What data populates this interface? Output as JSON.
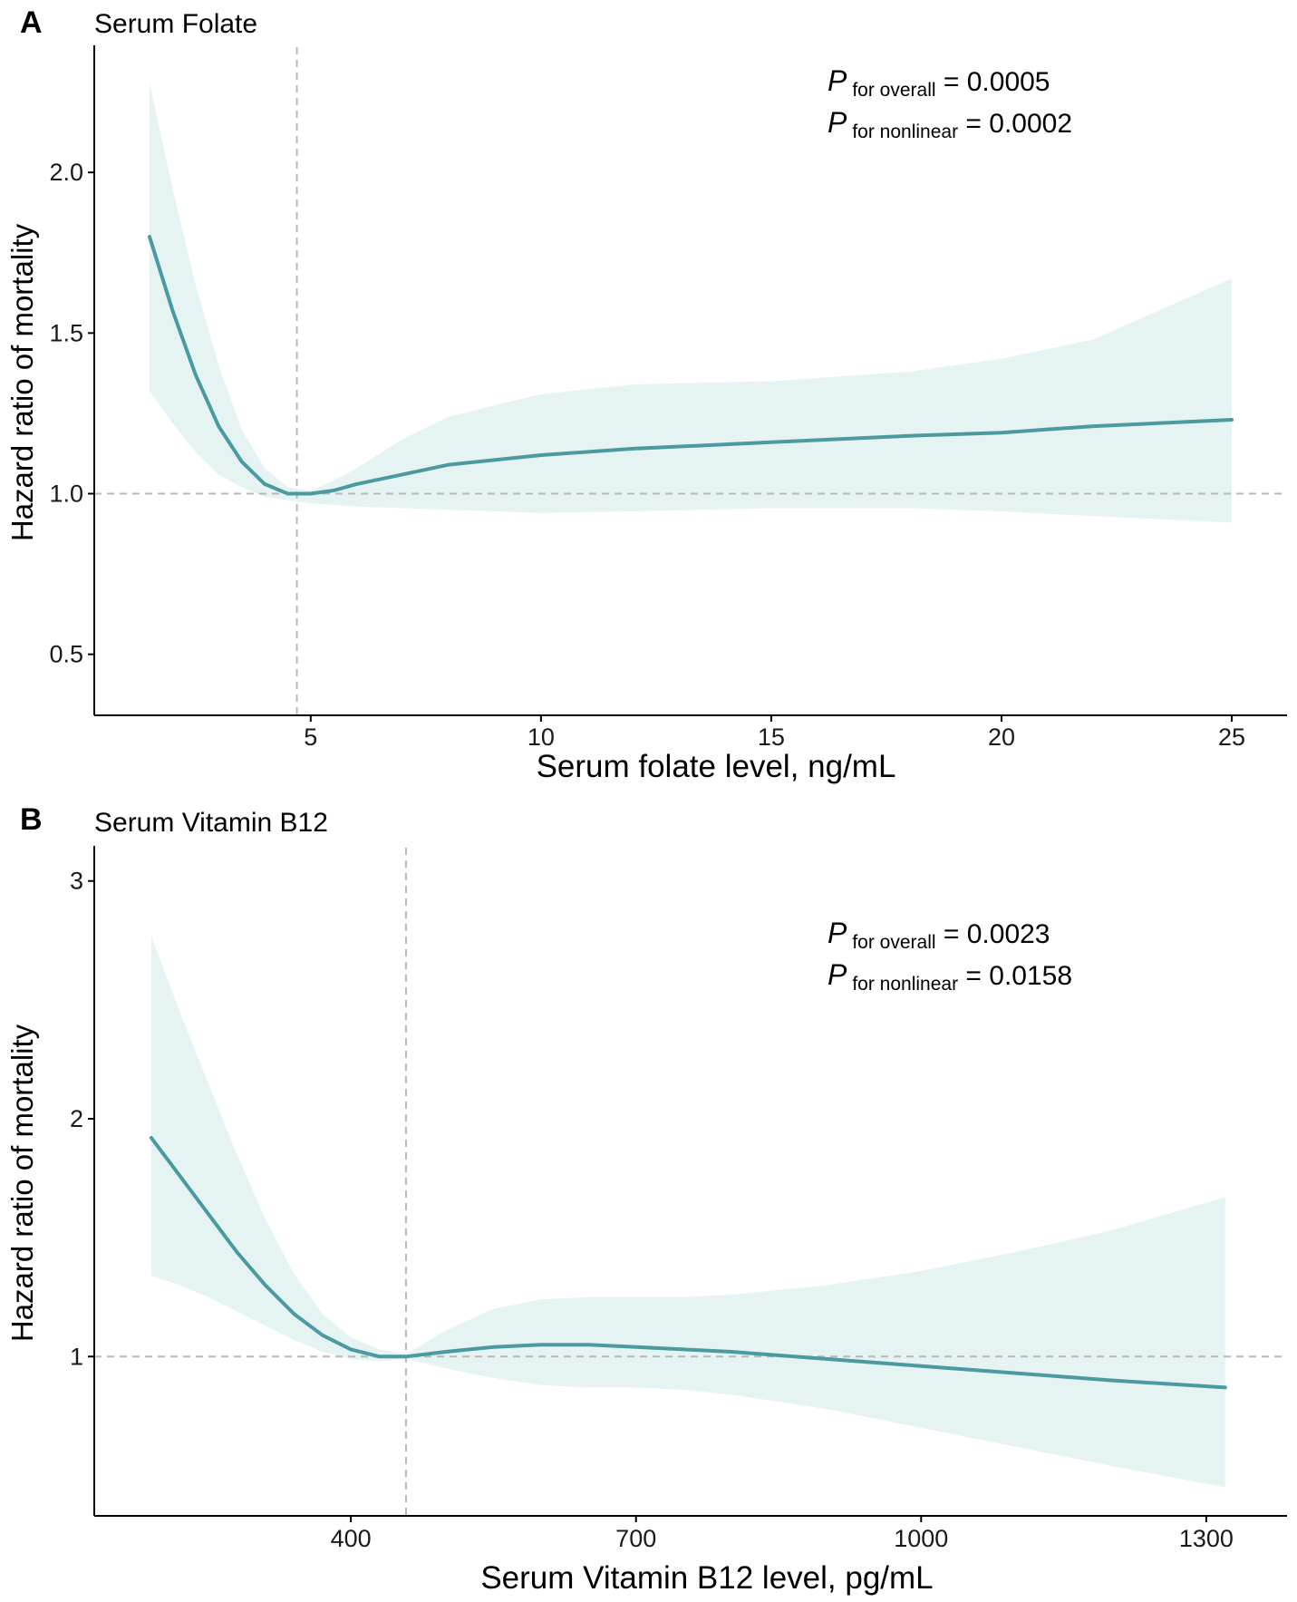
{
  "colors": {
    "line": "#4a9aa1",
    "band": "#e6f3f3",
    "ref": "#b8b8b8",
    "axis": "#000000"
  },
  "chart_data": [
    {
      "type": "line",
      "panel": "A",
      "title": "Serum Folate",
      "xlabel": "Serum folate level, ng/mL",
      "ylabel": "Hazard ratio of mortality",
      "xlim": [
        0.3,
        26.2
      ],
      "ylim": [
        0.31,
        2.39
      ],
      "xticks": [
        5,
        10,
        15,
        20,
        25
      ],
      "yticks": [
        0.5,
        1.0,
        1.5,
        2.0
      ],
      "ytick_labels": [
        "0.5",
        "1.0",
        "1.5",
        "2.0"
      ],
      "ref_x": 4.7,
      "ref_y": 1.0,
      "annotations": [
        {
          "p": "P",
          "sub": "for overall",
          "rest": " = 0.0005"
        },
        {
          "p": "P",
          "sub": "for nonlinear",
          "rest": " = 0.0002"
        }
      ],
      "series": [
        {
          "name": "HR",
          "x": [
            1.5,
            2,
            2.5,
            3,
            3.5,
            4,
            4.5,
            5,
            5.5,
            6,
            7,
            8,
            10,
            12,
            15,
            18,
            20,
            22,
            25
          ],
          "y": [
            1.8,
            1.57,
            1.37,
            1.21,
            1.1,
            1.03,
            1.0,
            1.0,
            1.01,
            1.03,
            1.06,
            1.09,
            1.12,
            1.14,
            1.16,
            1.18,
            1.19,
            1.21,
            1.23
          ]
        },
        {
          "name": "Upper CI",
          "x": [
            1.5,
            2,
            2.5,
            3,
            3.5,
            4,
            4.5,
            5,
            5.5,
            6,
            7,
            8,
            10,
            12,
            15,
            18,
            20,
            22,
            25
          ],
          "y": [
            2.28,
            1.95,
            1.65,
            1.4,
            1.2,
            1.08,
            1.02,
            1.01,
            1.04,
            1.08,
            1.17,
            1.24,
            1.31,
            1.34,
            1.35,
            1.38,
            1.42,
            1.48,
            1.67
          ]
        },
        {
          "name": "Lower CI",
          "x": [
            1.5,
            2,
            2.5,
            3,
            3.5,
            4,
            4.5,
            5,
            5.5,
            6,
            7,
            8,
            10,
            12,
            15,
            18,
            20,
            22,
            25
          ],
          "y": [
            1.32,
            1.22,
            1.13,
            1.06,
            1.02,
            0.99,
            0.98,
            0.97,
            0.965,
            0.96,
            0.955,
            0.95,
            0.94,
            0.945,
            0.955,
            0.955,
            0.945,
            0.93,
            0.91
          ]
        }
      ]
    },
    {
      "type": "line",
      "panel": "B",
      "title": "Serum Vitamin B12",
      "xlabel": "Serum Vitamin B12 level, pg/mL",
      "ylabel": "Hazard ratio of mortality",
      "xlim": [
        130,
        1385
      ],
      "ylim": [
        0.33,
        3.14
      ],
      "xticks": [
        400,
        700,
        1000,
        1300
      ],
      "yticks": [
        1,
        2,
        3
      ],
      "ytick_labels": [
        "1",
        "2",
        "3"
      ],
      "ref_x": 458,
      "ref_y": 1.0,
      "annotations": [
        {
          "p": "P",
          "sub": "for overall",
          "rest": " = 0.0023"
        },
        {
          "p": "P",
          "sub": "for nonlinear",
          "rest": " = 0.0158"
        }
      ],
      "series": [
        {
          "name": "HR",
          "x": [
            190,
            220,
            250,
            280,
            310,
            340,
            370,
            400,
            430,
            458,
            500,
            550,
            600,
            650,
            700,
            750,
            800,
            900,
            1000,
            1100,
            1200,
            1320
          ],
          "y": [
            1.92,
            1.76,
            1.6,
            1.44,
            1.3,
            1.18,
            1.09,
            1.03,
            1.0,
            1.0,
            1.02,
            1.04,
            1.05,
            1.05,
            1.04,
            1.03,
            1.02,
            0.99,
            0.96,
            0.93,
            0.9,
            0.87
          ]
        },
        {
          "name": "Upper CI",
          "x": [
            190,
            220,
            250,
            280,
            310,
            340,
            370,
            400,
            430,
            458,
            500,
            550,
            600,
            650,
            700,
            750,
            800,
            900,
            1000,
            1100,
            1200,
            1320
          ],
          "y": [
            2.77,
            2.45,
            2.15,
            1.85,
            1.58,
            1.35,
            1.18,
            1.08,
            1.03,
            1.01,
            1.11,
            1.2,
            1.24,
            1.25,
            1.25,
            1.25,
            1.26,
            1.3,
            1.36,
            1.44,
            1.53,
            1.67
          ]
        },
        {
          "name": "Lower CI",
          "x": [
            190,
            220,
            250,
            280,
            310,
            340,
            370,
            400,
            430,
            458,
            500,
            550,
            600,
            650,
            700,
            750,
            800,
            900,
            1000,
            1100,
            1200,
            1320
          ],
          "y": [
            1.34,
            1.3,
            1.25,
            1.19,
            1.13,
            1.07,
            1.02,
            0.99,
            0.98,
            0.99,
            0.95,
            0.91,
            0.88,
            0.87,
            0.87,
            0.86,
            0.84,
            0.78,
            0.7,
            0.62,
            0.54,
            0.45
          ]
        }
      ]
    }
  ]
}
